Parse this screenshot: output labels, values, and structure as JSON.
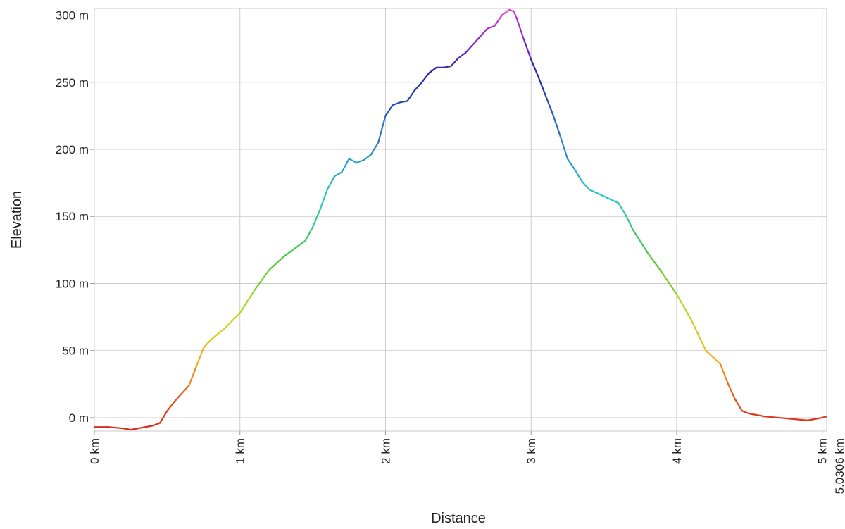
{
  "chart_data": {
    "type": "line",
    "title": "",
    "xlabel": "Distance",
    "ylabel": "Elevation",
    "xlim": [
      0,
      5.0306
    ],
    "ylim": [
      -10,
      305
    ],
    "grid": true,
    "legend": "none",
    "x_ticks": [
      {
        "value": 0,
        "label": "0 km"
      },
      {
        "value": 1,
        "label": "1 km"
      },
      {
        "value": 2,
        "label": "2 km"
      },
      {
        "value": 3,
        "label": "3 km"
      },
      {
        "value": 4,
        "label": "4 km"
      },
      {
        "value": 5,
        "label": "5 km"
      }
    ],
    "x_end_label": {
      "value": 5.0306,
      "label": "5.0306 km"
    },
    "y_ticks": [
      {
        "value": 0,
        "label": "0 m"
      },
      {
        "value": 50,
        "label": "50 m"
      },
      {
        "value": 100,
        "label": "100 m"
      },
      {
        "value": 150,
        "label": "150 m"
      },
      {
        "value": 200,
        "label": "200 m"
      },
      {
        "value": 250,
        "label": "250 m"
      },
      {
        "value": 300,
        "label": "300 m"
      }
    ],
    "color_scale": {
      "description": "line colored by elevation",
      "stops": [
        {
          "value": -8,
          "color": "#d42a1e"
        },
        {
          "value": 15,
          "color": "#e8561c"
        },
        {
          "value": 45,
          "color": "#f0b21e"
        },
        {
          "value": 75,
          "color": "#c8dc1e"
        },
        {
          "value": 120,
          "color": "#46c83c"
        },
        {
          "value": 165,
          "color": "#28c8c8"
        },
        {
          "value": 205,
          "color": "#2f86c8"
        },
        {
          "value": 255,
          "color": "#2323a0"
        },
        {
          "value": 285,
          "color": "#8c28d2"
        },
        {
          "value": 304,
          "color": "#e646dc"
        }
      ]
    },
    "series": [
      {
        "x": [
          0,
          0.1,
          0.2,
          0.25,
          0.3,
          0.4,
          0.45,
          0.5,
          0.55,
          0.6,
          0.65,
          0.7,
          0.75,
          0.8,
          0.9,
          1.0,
          1.1,
          1.2,
          1.3,
          1.4,
          1.45,
          1.5,
          1.55,
          1.6,
          1.65,
          1.7,
          1.75,
          1.8,
          1.85,
          1.9,
          1.95,
          2.0,
          2.05,
          2.1,
          2.15,
          2.2,
          2.25,
          2.3,
          2.35,
          2.4,
          2.45,
          2.5,
          2.55,
          2.6,
          2.65,
          2.7,
          2.75,
          2.8,
          2.85,
          2.88,
          2.9,
          2.95,
          3.0,
          3.05,
          3.1,
          3.15,
          3.2,
          3.25,
          3.3,
          3.35,
          3.4,
          3.5,
          3.6,
          3.65,
          3.7,
          3.8,
          3.9,
          4.0,
          4.1,
          4.2,
          4.3,
          4.35,
          4.4,
          4.45,
          4.5,
          4.55,
          4.6,
          4.7,
          4.8,
          4.9,
          4.95,
          5.0,
          5.03
        ],
        "y": [
          -7,
          -7,
          -8,
          -9,
          -8,
          -6,
          -4,
          5,
          12,
          18,
          24,
          38,
          52,
          58,
          67,
          78,
          95,
          110,
          120,
          128,
          132,
          142,
          155,
          170,
          180,
          183,
          193,
          190,
          192,
          196,
          205,
          225,
          233,
          235,
          236,
          244,
          250,
          257,
          261,
          261,
          262,
          268,
          272,
          278,
          284,
          290,
          292,
          300,
          304,
          303,
          298,
          282,
          267,
          254,
          240,
          226,
          210,
          193,
          185,
          176,
          170,
          165,
          160,
          151,
          140,
          123,
          108,
          92,
          73,
          50,
          40,
          26,
          14,
          5,
          3,
          2,
          1,
          0,
          -1,
          -2,
          -1,
          0,
          1
        ]
      }
    ]
  }
}
